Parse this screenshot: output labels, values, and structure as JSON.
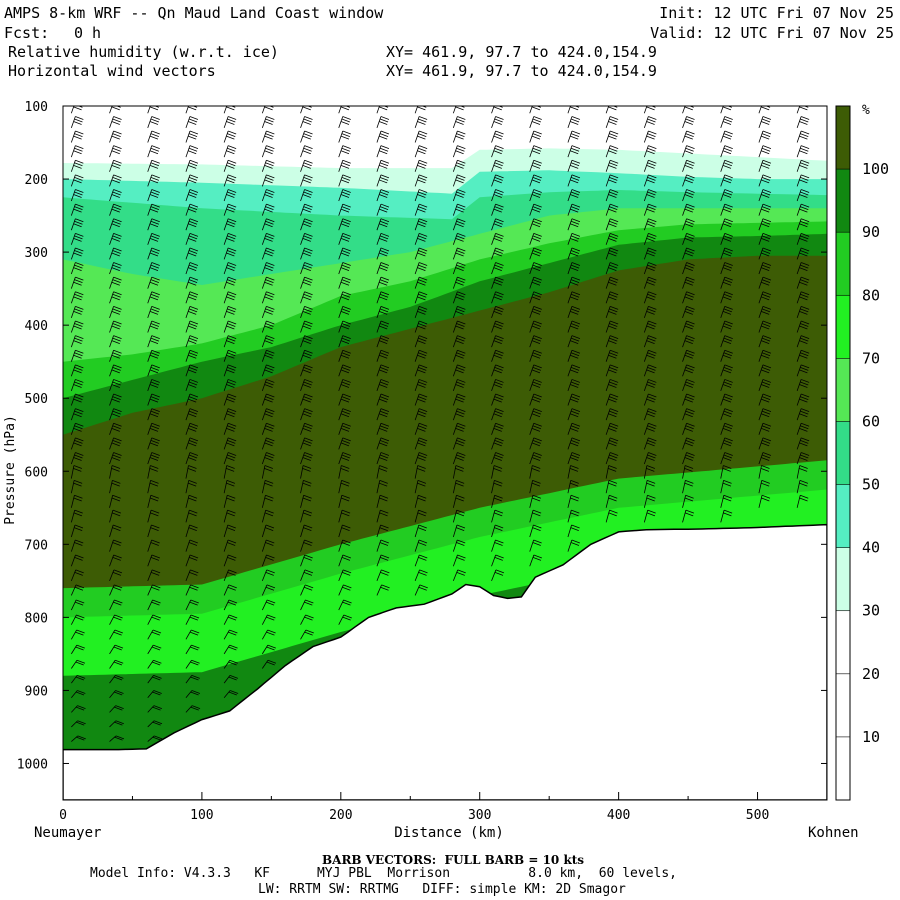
{
  "header": {
    "title": "AMPS 8-km WRF -- Qn Maud Land Coast window",
    "init": "Init: 12 UTC Fri 07 Nov 25",
    "fcst_label": "Fcst:",
    "fcst_value": "0 h",
    "valid": "Valid: 12 UTC Fri 07 Nov 25",
    "field1": "Relative humidity (w.r.t. ice)",
    "field2": "Horizontal wind vectors",
    "xy1": "XY= 461.9, 97.7 to 424.0,154.9",
    "xy2": "XY= 461.9, 97.7 to 424.0,154.9"
  },
  "footer": {
    "barb": "BARB VECTORS:  FULL BARB = 10 kts",
    "model_line1": "Model Info: V4.3.3   KF      MYJ PBL  Morrison          8.0 km,  60 levels,",
    "model_line2": "LW: RRTM SW: RRTMG   DIFF: simple KM: 2D Smagor",
    "left_station": "Neumayer",
    "right_station": "Kohnen"
  },
  "colors": {
    "c0": "#ffffff",
    "c30": "#ccffe6",
    "c40": "#55eec2",
    "c50": "#33dd88",
    "c60": "#55e855",
    "c70": "#22f022",
    "c80": "#22cc22",
    "c90": "#118811",
    "c100": "#3d5c05",
    "terrain": "#ffffff",
    "barb": "#000000"
  },
  "chart_data": {
    "type": "heatmap",
    "title": "Relative humidity (w.r.t. ice) and horizontal wind vectors",
    "xlabel": "Distance (km)",
    "ylabel": "Pressure (hPa)",
    "xlim": [
      0,
      550
    ],
    "ylim": [
      1050,
      100
    ],
    "x_ticks": [
      0,
      100,
      200,
      300,
      400,
      500
    ],
    "x_tick_labels": [
      "0",
      "100",
      "200",
      "300",
      "400",
      "500"
    ],
    "y_ticks": [
      100,
      200,
      300,
      400,
      500,
      600,
      700,
      800,
      900,
      1000
    ],
    "y_tick_labels": [
      "100",
      "200",
      "300",
      "400",
      "500",
      "600",
      "700",
      "800",
      "900",
      "1000"
    ],
    "colorbar": {
      "unit": "%",
      "levels": [
        10,
        20,
        30,
        40,
        50,
        60,
        70,
        80,
        90,
        100
      ],
      "labels": [
        "10",
        "20",
        "30",
        "40",
        "50",
        "60",
        "70",
        "80",
        "90",
        "100"
      ]
    },
    "terrain_surface_hPa": {
      "x": [
        0,
        20,
        40,
        60,
        80,
        100,
        120,
        140,
        160,
        180,
        200,
        220,
        240,
        260,
        280,
        290,
        300,
        310,
        320,
        330,
        340,
        360,
        380,
        400,
        420,
        460,
        500,
        550
      ],
      "p": [
        981,
        981,
        981,
        980,
        958,
        940,
        928,
        898,
        866,
        840,
        827,
        800,
        787,
        782,
        768,
        755,
        758,
        770,
        774,
        772,
        745,
        728,
        700,
        683,
        680,
        679,
        677,
        673
      ]
    },
    "rh_bands": [
      {
        "level": "c30",
        "top_hPa_by_x": {
          "x": [
            0,
            100,
            200,
            280,
            300,
            350,
            400,
            450,
            500,
            550
          ],
          "p": [
            178,
            180,
            185,
            185,
            160,
            158,
            160,
            165,
            170,
            175
          ]
        }
      },
      {
        "level": "c40",
        "top_hPa_by_x": {
          "x": [
            0,
            100,
            200,
            280,
            300,
            350,
            400,
            450,
            500,
            550
          ],
          "p": [
            200,
            205,
            212,
            220,
            190,
            188,
            192,
            197,
            200,
            200
          ]
        }
      },
      {
        "level": "c50",
        "top_hPa_by_x": {
          "x": [
            0,
            100,
            200,
            280,
            300,
            350,
            400,
            450,
            500,
            550
          ],
          "p": [
            225,
            240,
            250,
            255,
            225,
            218,
            215,
            218,
            220,
            222
          ]
        }
      },
      {
        "level": "c60",
        "top_hPa_by_x": {
          "x": [
            0,
            50,
            100,
            150,
            200,
            250,
            300,
            350,
            400,
            450,
            500,
            550
          ],
          "p": [
            310,
            330,
            345,
            330,
            315,
            300,
            275,
            250,
            240,
            240,
            240,
            240
          ]
        }
      },
      {
        "level": "c80",
        "top_hPa_by_x": {
          "x": [
            0,
            50,
            100,
            150,
            200,
            250,
            300,
            350,
            400,
            450,
            500,
            550
          ],
          "p": [
            450,
            440,
            425,
            400,
            360,
            340,
            310,
            288,
            270,
            262,
            260,
            258
          ]
        }
      },
      {
        "level": "c90",
        "top_hPa_by_x": {
          "x": [
            0,
            50,
            100,
            150,
            200,
            250,
            300,
            350,
            400,
            450,
            500,
            550
          ],
          "p": [
            500,
            475,
            450,
            430,
            400,
            375,
            340,
            315,
            290,
            280,
            278,
            275
          ]
        }
      },
      {
        "level": "c100",
        "top_hPa_by_x": {
          "x": [
            0,
            50,
            100,
            150,
            200,
            250,
            300,
            350,
            400,
            450,
            500,
            550
          ],
          "p": [
            550,
            520,
            500,
            470,
            430,
            405,
            380,
            355,
            325,
            310,
            305,
            305
          ]
        }
      }
    ],
    "low_level_moist": {
      "x": [
        0,
        100,
        200,
        300,
        400,
        550
      ],
      "p": [
        760,
        755,
        700,
        650,
        610,
        585
      ]
    },
    "wind_barbs": {
      "full_barb_kts": 10,
      "description": "westerly flow aloft; easterly/south-easterly katabatic flow near surface"
    }
  }
}
